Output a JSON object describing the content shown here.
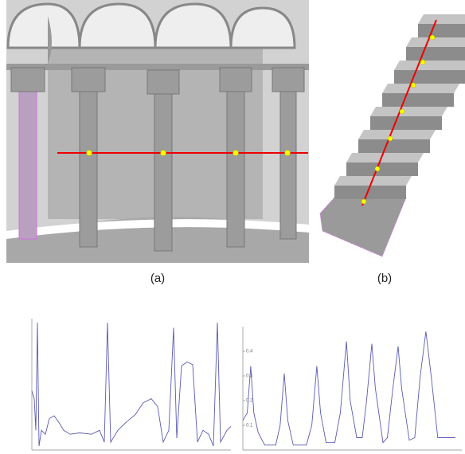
{
  "captions": [
    "(a)",
    "(b)"
  ],
  "chart_data": [
    {
      "type": "line",
      "color": "#5a5ab4",
      "xlim": [
        0,
        100
      ],
      "ylim": [
        0,
        1
      ],
      "x": [
        0,
        1.2,
        2,
        2.8,
        3.6,
        4.8,
        6.8,
        8.8,
        11.2,
        13.6,
        16,
        19.2,
        24,
        30,
        34,
        36.4,
        38,
        39.6,
        43.2,
        47.2,
        52,
        56,
        60,
        63.2,
        66,
        68.8,
        71.2,
        72.8,
        75.2,
        78,
        80.8,
        83.2,
        86,
        88.8,
        91.2,
        93.2,
        94.8,
        98,
        100
      ],
      "values": [
        0.45,
        0.39,
        0.15,
        0.97,
        0.03,
        0.15,
        0.12,
        0.24,
        0.26,
        0.21,
        0.15,
        0.12,
        0.13,
        0.12,
        0.15,
        0.06,
        0.97,
        0.06,
        0.15,
        0.21,
        0.27,
        0.36,
        0.39,
        0.33,
        0.06,
        0.15,
        0.93,
        0.09,
        0.64,
        0.67,
        0.65,
        0.06,
        0.15,
        0.12,
        0.03,
        0.97,
        0.06,
        0.15,
        0.18
      ]
    },
    {
      "type": "line",
      "color": "#5a5ab4",
      "xlim": [
        0,
        100
      ],
      "ylim": [
        0,
        0.5
      ],
      "yticks": [
        0.1,
        0.2,
        0.3,
        0.4
      ],
      "x": [
        0,
        2,
        3.6,
        5,
        7,
        10,
        15,
        17,
        18.9,
        20.5,
        23,
        29,
        31.5,
        33.8,
        35.5,
        38,
        42,
        44.5,
        47.3,
        49,
        52,
        54.5,
        56.5,
        58.9,
        60.5,
        64,
        66,
        68.5,
        70.9,
        72.5,
        76,
        78.5,
        81,
        83.6,
        86,
        89,
        95,
        97
      ],
      "values": [
        0.12,
        0.15,
        0.34,
        0.15,
        0.07,
        0.02,
        0.02,
        0.1,
        0.31,
        0.12,
        0.02,
        0.02,
        0.1,
        0.34,
        0.15,
        0.03,
        0.03,
        0.15,
        0.44,
        0.2,
        0.05,
        0.05,
        0.2,
        0.43,
        0.25,
        0.03,
        0.05,
        0.25,
        0.42,
        0.25,
        0.04,
        0.05,
        0.3,
        0.48,
        0.3,
        0.05,
        0.05,
        0.05
      ]
    }
  ]
}
